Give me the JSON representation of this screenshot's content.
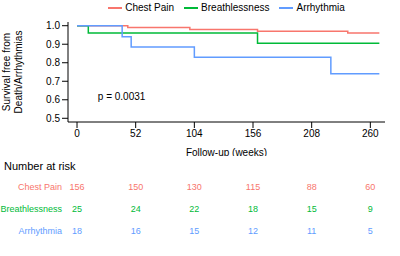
{
  "chart_data": {
    "type": "line",
    "line_style": "step",
    "ylabel": "Survival free from Death/Arrhythmias",
    "xlabel": "Follow-up (weeks)",
    "xlim": [
      -8,
      273
    ],
    "xticks": [
      0,
      52,
      104,
      156,
      208,
      260
    ],
    "ylim": [
      0.48,
      1.02
    ],
    "yticks": [
      0.5,
      0.6,
      0.7,
      0.8,
      0.9,
      {
        "value": 1,
        "label": "1.0"
      }
    ],
    "annotations": [
      {
        "text": "p = 0.0031",
        "x": 14,
        "y": 0.62
      }
    ],
    "series": [
      {
        "name": "Chest Pain",
        "color": "#F8766D",
        "x": [
          0,
          45,
          100,
          160,
          240,
          268
        ],
        "values": [
          1,
          0.99,
          0.98,
          0.97,
          0.96,
          0.96
        ]
      },
      {
        "name": "Breathlessness",
        "color": "#00BA38",
        "x": [
          0,
          10,
          160,
          268
        ],
        "values": [
          1,
          0.96,
          0.905,
          0.905
        ]
      },
      {
        "name": "Arrhythmia",
        "color": "#619CFF",
        "x": [
          0,
          40,
          48,
          104,
          225,
          268
        ],
        "values": [
          1,
          0.94,
          0.885,
          0.83,
          0.74,
          0.74
        ]
      }
    ],
    "risk_table": {
      "title": "Number at risk",
      "times": [
        0,
        52,
        104,
        156,
        208,
        260
      ],
      "rows": [
        {
          "name": "Chest Pain",
          "color": "#F8766D",
          "counts": [
            156,
            150,
            130,
            115,
            88,
            60
          ]
        },
        {
          "name": "Breathlessness",
          "color": "#00BA38",
          "counts": [
            25,
            24,
            22,
            18,
            15,
            9
          ]
        },
        {
          "name": "Arrhythmia",
          "color": "#619CFF",
          "counts": [
            18,
            16,
            15,
            12,
            11,
            5
          ]
        }
      ]
    }
  }
}
